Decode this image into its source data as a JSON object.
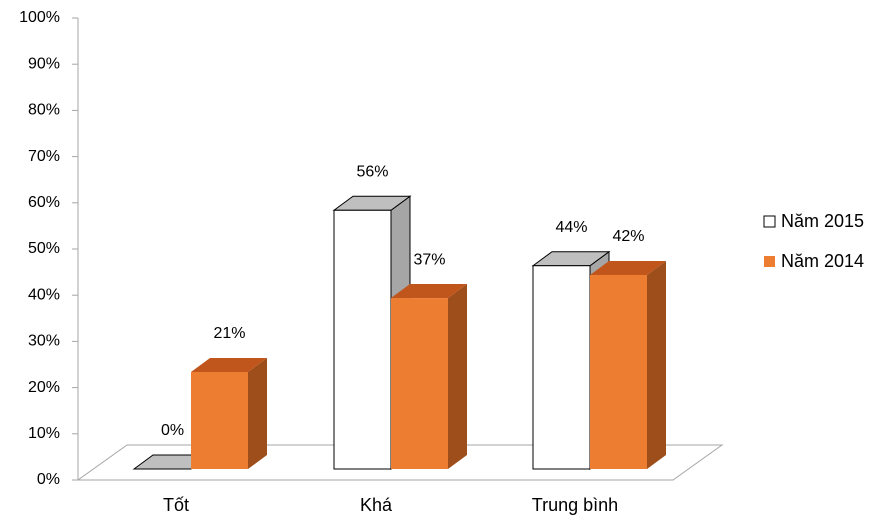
{
  "chart_data": {
    "type": "bar3d",
    "categories": [
      "Tốt",
      "Khá",
      "Trung bình"
    ],
    "series": [
      {
        "name": "Năm 2015",
        "color": "#ffffff",
        "values": [
          0,
          56,
          44
        ],
        "value_labels": [
          "0%",
          "56%",
          "44%"
        ]
      },
      {
        "name": "Năm 2014",
        "color": "#ed7d31",
        "values": [
          21,
          37,
          42
        ],
        "value_labels": [
          "21%",
          "37%",
          "42%"
        ]
      }
    ],
    "ylim": [
      0,
      100
    ],
    "yticks": [
      {
        "value": 0,
        "label": "0%"
      },
      {
        "value": 10,
        "label": "10%"
      },
      {
        "value": 20,
        "label": "20%"
      },
      {
        "value": 30,
        "label": "30%"
      },
      {
        "value": 40,
        "label": "40%"
      },
      {
        "value": 50,
        "label": "50%"
      },
      {
        "value": 60,
        "label": "60%"
      },
      {
        "value": 70,
        "label": "70%"
      },
      {
        "value": 80,
        "label": "80%"
      },
      {
        "value": 90,
        "label": "90%"
      },
      {
        "value": 100,
        "label": "100%"
      }
    ],
    "legend": "right",
    "grid": false
  }
}
